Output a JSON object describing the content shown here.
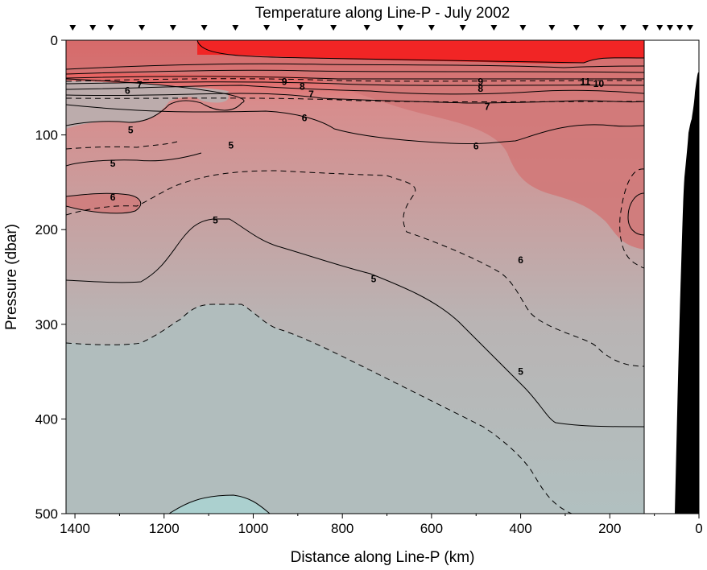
{
  "chart_data": {
    "type": "contour",
    "title": "Temperature along Line-P - July 2002",
    "xlabel": "Distance along Line-P (km)",
    "ylabel": "Pressure (dbar)",
    "xlim": [
      1420,
      0
    ],
    "ylim": [
      0,
      500
    ],
    "x_ticks": [
      1400,
      1200,
      1000,
      800,
      600,
      400,
      200,
      0
    ],
    "y_ticks": [
      0,
      100,
      200,
      300,
      400,
      500
    ],
    "station_markers_km": [
      1405,
      1360,
      1320,
      1250,
      1180,
      1110,
      1040,
      970,
      895,
      820,
      745,
      670,
      600,
      530,
      460,
      395,
      330,
      275,
      220,
      170,
      120,
      88,
      65,
      43,
      20
    ],
    "contour_labels": [
      {
        "text": "7",
        "x": 1255,
        "y": 47
      },
      {
        "text": "6",
        "x": 1282,
        "y": 53
      },
      {
        "text": "9",
        "x": 930,
        "y": 44
      },
      {
        "text": "8",
        "x": 890,
        "y": 49
      },
      {
        "text": "7",
        "x": 870,
        "y": 57
      },
      {
        "text": "9",
        "x": 490,
        "y": 44
      },
      {
        "text": "8",
        "x": 490,
        "y": 51
      },
      {
        "text": "11",
        "x": 255,
        "y": 44
      },
      {
        "text": "10",
        "x": 225,
        "y": 46
      },
      {
        "text": "7",
        "x": 475,
        "y": 70
      },
      {
        "text": "6",
        "x": 885,
        "y": 82
      },
      {
        "text": "5",
        "x": 1275,
        "y": 95
      },
      {
        "text": "5",
        "x": 1050,
        "y": 111
      },
      {
        "text": "6",
        "x": 500,
        "y": 112
      },
      {
        "text": "5",
        "x": 1315,
        "y": 130
      },
      {
        "text": "6",
        "x": 1315,
        "y": 166
      },
      {
        "text": "5",
        "x": 1085,
        "y": 190
      },
      {
        "text": "6",
        "x": 400,
        "y": 232
      },
      {
        "text": "5",
        "x": 730,
        "y": 252
      },
      {
        "text": "5",
        "x": 400,
        "y": 350
      }
    ]
  }
}
